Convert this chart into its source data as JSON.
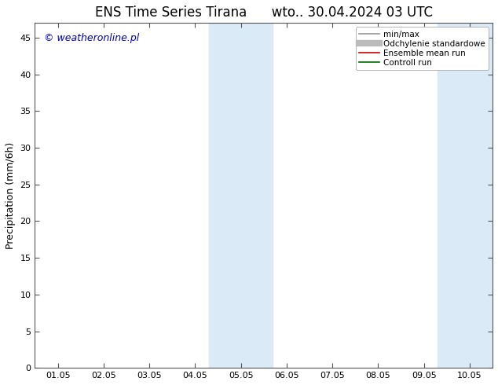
{
  "title_left": "ENS Time Series Tirana",
  "title_right": "wto.. 30.04.2024 03 UTC",
  "ylabel": "Precipitation (mm/6h)",
  "xlabel": "",
  "ylim": [
    0,
    47
  ],
  "yticks": [
    0,
    5,
    10,
    15,
    20,
    25,
    30,
    35,
    40,
    45
  ],
  "xtick_labels": [
    "01.05",
    "02.05",
    "03.05",
    "04.05",
    "05.05",
    "06.05",
    "07.05",
    "08.05",
    "09.05",
    "10.05"
  ],
  "num_xticks": 10,
  "shaded_regions": [
    {
      "xstart": 3.3,
      "xend": 4.0,
      "color": "#daeaf6"
    },
    {
      "xstart": 4.0,
      "xend": 4.7,
      "color": "#daeaf6"
    },
    {
      "xstart": 8.3,
      "xend": 9.0,
      "color": "#daeaf6"
    },
    {
      "xstart": 9.0,
      "xend": 9.5,
      "color": "#daeaf6"
    }
  ],
  "background_color": "#ffffff",
  "plot_bg_color": "#ffffff",
  "border_color": "#555555",
  "watermark_text": "© weatheronline.pl",
  "watermark_color": "#0000bb",
  "legend_items": [
    {
      "label": "min/max",
      "color": "#999999",
      "lw": 1.2,
      "style": "-"
    },
    {
      "label": "Odchylenie standardowe",
      "color": "#bbbbbb",
      "lw": 6,
      "style": "-"
    },
    {
      "label": "Ensemble mean run",
      "color": "#cc0000",
      "lw": 1.2,
      "style": "-"
    },
    {
      "label": "Controll run",
      "color": "#006600",
      "lw": 1.2,
      "style": "-"
    }
  ],
  "title_fontsize": 12,
  "tick_fontsize": 8,
  "ylabel_fontsize": 9,
  "watermark_fontsize": 9,
  "legend_fontsize": 7.5
}
